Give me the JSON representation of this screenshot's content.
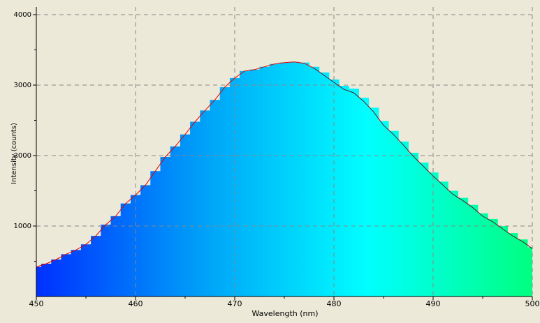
{
  "chart_data": {
    "type": "spectrum",
    "xlabel": "Wavelength (nm)",
    "ylabel": "Intensity (counts)",
    "xlim": [
      450,
      500
    ],
    "ylim": [
      0,
      4000
    ],
    "xticks": [
      450,
      460,
      470,
      480,
      490,
      500
    ],
    "yticks": [
      1000,
      2000,
      3000,
      4000
    ],
    "xminor": [
      455,
      465,
      475,
      485,
      495
    ],
    "yminor": [
      500,
      1500,
      2500,
      3500
    ],
    "grid": true,
    "x": [
      450,
      451,
      452,
      453,
      454,
      455,
      456,
      457,
      458,
      459,
      460,
      461,
      462,
      463,
      464,
      465,
      466,
      467,
      468,
      469,
      470,
      471,
      472,
      473,
      474,
      475,
      476,
      477,
      478,
      479,
      480,
      481,
      482,
      483,
      484,
      485,
      486,
      487,
      488,
      489,
      490,
      491,
      492,
      493,
      494,
      495,
      496,
      497,
      498,
      499,
      500
    ],
    "bar_gradient": [
      "#0030ff",
      "#00a0f8",
      "#00ffff",
      "#00ff80"
    ],
    "bars": [
      420,
      465,
      525,
      600,
      660,
      740,
      860,
      1020,
      1140,
      1320,
      1440,
      1580,
      1780,
      1980,
      2130,
      2300,
      2480,
      2640,
      2790,
      2970,
      3100,
      3200,
      3220,
      3260,
      3300,
      3320,
      3330,
      3320,
      3260,
      3180,
      3080,
      2990,
      2950,
      2820,
      2680,
      2490,
      2350,
      2200,
      2040,
      1900,
      1760,
      1630,
      1500,
      1400,
      1300,
      1180,
      1100,
      1000,
      900,
      810,
      700
    ],
    "trace": [
      {
        "color": "#e00000",
        "values": [
          420,
          465,
          525,
          600,
          660,
          740,
          860,
          1020,
          1140,
          1320,
          1440,
          1580,
          1780,
          1980,
          2130,
          2300,
          2480,
          2640,
          2790,
          2970,
          3100,
          3200,
          3220,
          3260,
          3300,
          3320,
          3330,
          3310,
          3240,
          null,
          null,
          null,
          null,
          null,
          null,
          null,
          null,
          null,
          null,
          null,
          null,
          null,
          null,
          null,
          null,
          null,
          null,
          null,
          null,
          null,
          null
        ]
      },
      {
        "color": "#5a1a2a",
        "values": [
          null,
          null,
          null,
          null,
          null,
          null,
          null,
          null,
          null,
          null,
          null,
          null,
          null,
          null,
          null,
          null,
          null,
          null,
          null,
          null,
          null,
          null,
          null,
          null,
          null,
          null,
          null,
          null,
          3240,
          3140,
          3040,
          2940,
          2890,
          2770,
          2620,
          2430,
          2300,
          2150,
          1990,
          1850,
          1710,
          1580,
          1450,
          1360,
          1260,
          1140,
          1060,
          960,
          860,
          780,
          680
        ]
      }
    ]
  }
}
